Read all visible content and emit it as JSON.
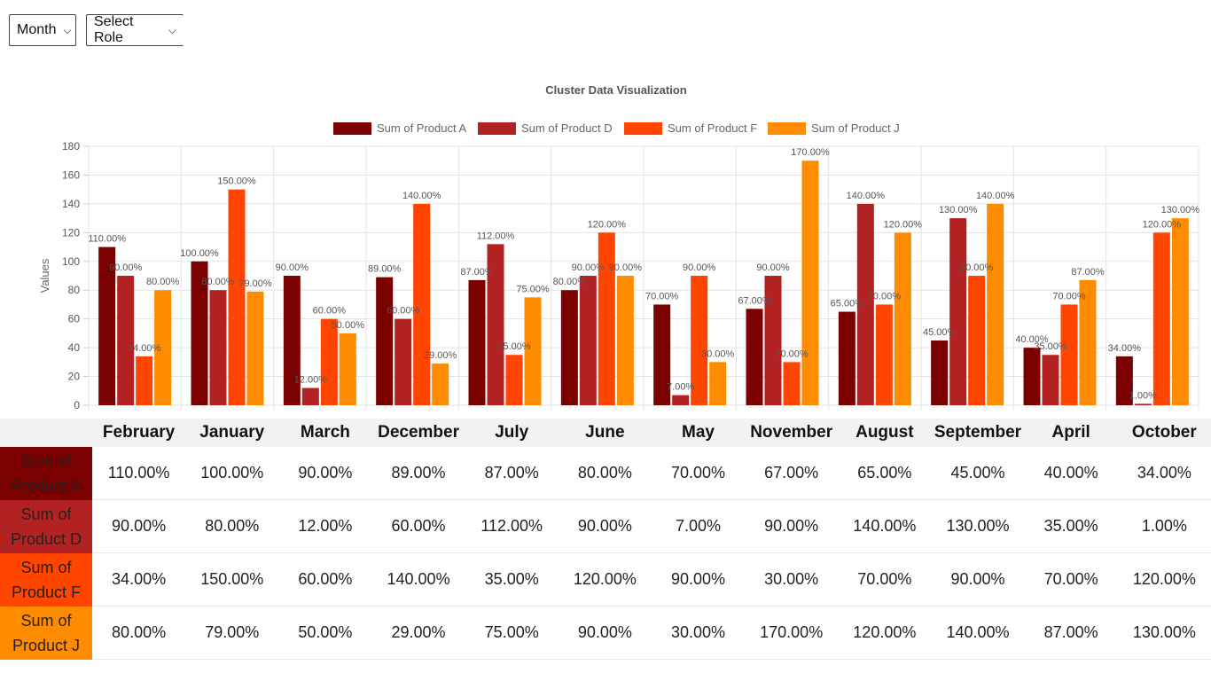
{
  "controls": {
    "month_label": "Month",
    "role_label": "Select Role"
  },
  "colors": {
    "product_a": "#7b0000",
    "product_d": "#b22222",
    "product_f": "#ff4500",
    "product_j": "#ff8c00"
  },
  "chart_data": {
    "type": "bar",
    "title": "Cluster Data Visualization",
    "ylabel": "Values",
    "xlabel": "",
    "ylim": [
      0,
      180
    ],
    "yticks": [
      0,
      20,
      40,
      60,
      80,
      100,
      120,
      140,
      160,
      180
    ],
    "grid": true,
    "legend": "top-center",
    "categories": [
      "February",
      "January",
      "March",
      "December",
      "July",
      "June",
      "May",
      "November",
      "August",
      "September",
      "April",
      "October"
    ],
    "series": [
      {
        "name": "Sum of Product A",
        "color": "#7b0000",
        "values": [
          110,
          100,
          90,
          89,
          87,
          80,
          70,
          67,
          65,
          45,
          40,
          34
        ]
      },
      {
        "name": "Sum of Product D",
        "color": "#b22222",
        "values": [
          90,
          80,
          12,
          60,
          112,
          90,
          7,
          90,
          140,
          130,
          35,
          1
        ]
      },
      {
        "name": "Sum of Product F",
        "color": "#ff4500",
        "values": [
          34,
          150,
          60,
          140,
          35,
          120,
          90,
          30,
          70,
          90,
          70,
          120
        ]
      },
      {
        "name": "Sum of Product J",
        "color": "#ff8c00",
        "values": [
          80,
          79,
          50,
          29,
          75,
          90,
          30,
          170,
          120,
          140,
          87,
          130
        ]
      }
    ]
  },
  "table": {
    "rows": [
      {
        "label": "Sum of Product A",
        "color": "#7b0000",
        "cells": [
          "110.00%",
          "100.00%",
          "90.00%",
          "89.00%",
          "87.00%",
          "80.00%",
          "70.00%",
          "67.00%",
          "65.00%",
          "45.00%",
          "40.00%",
          "34.00%"
        ]
      },
      {
        "label": "Sum of Product D",
        "color": "#b22222",
        "cells": [
          "90.00%",
          "80.00%",
          "12.00%",
          "60.00%",
          "112.00%",
          "90.00%",
          "7.00%",
          "90.00%",
          "140.00%",
          "130.00%",
          "35.00%",
          "1.00%"
        ]
      },
      {
        "label": "Sum of Product F",
        "color": "#ff4500",
        "cells": [
          "34.00%",
          "150.00%",
          "60.00%",
          "140.00%",
          "35.00%",
          "120.00%",
          "90.00%",
          "30.00%",
          "70.00%",
          "90.00%",
          "70.00%",
          "120.00%"
        ]
      },
      {
        "label": "Sum of Product J",
        "color": "#ff8c00",
        "cells": [
          "80.00%",
          "79.00%",
          "50.00%",
          "29.00%",
          "75.00%",
          "90.00%",
          "30.00%",
          "170.00%",
          "120.00%",
          "140.00%",
          "87.00%",
          "130.00%"
        ]
      }
    ]
  }
}
